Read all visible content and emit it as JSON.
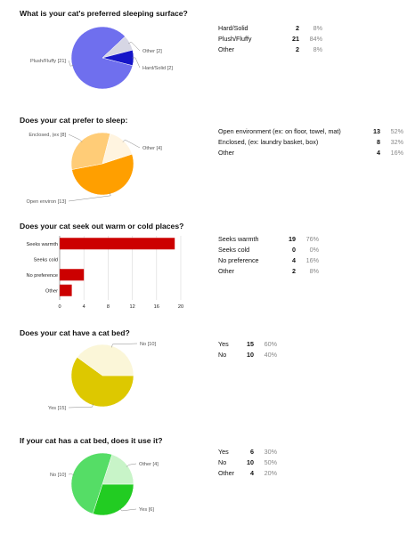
{
  "questions": [
    {
      "title": "What is your cat's preferred sleeping surface?",
      "summary": [
        {
          "label": "Hard/Solid",
          "count": "2",
          "percent": "8%"
        },
        {
          "label": "Plush/Fluffy",
          "count": "21",
          "percent": "84%"
        },
        {
          "label": "Other",
          "count": "2",
          "percent": "8%"
        }
      ]
    },
    {
      "title": "Does your cat prefer to sleep:",
      "summary": [
        {
          "label": "Open environment (ex: on floor, towel, mat)",
          "count": "13",
          "percent": "52%"
        },
        {
          "label": "Enclosed, (ex: laundry basket, box)",
          "count": "8",
          "percent": "32%"
        },
        {
          "label": "Other",
          "count": "4",
          "percent": "16%"
        }
      ]
    },
    {
      "title": "Does your cat seek out warm or cold places?",
      "summary": [
        {
          "label": "Seeks warmth",
          "count": "19",
          "percent": "76%"
        },
        {
          "label": "Seeks cold",
          "count": "0",
          "percent": "0%"
        },
        {
          "label": "No preference",
          "count": "4",
          "percent": "16%"
        },
        {
          "label": "Other",
          "count": "2",
          "percent": "8%"
        }
      ]
    },
    {
      "title": "Does your cat have a cat bed?",
      "summary": [
        {
          "label": "Yes",
          "count": "15",
          "percent": "60%"
        },
        {
          "label": "No",
          "count": "10",
          "percent": "40%"
        }
      ]
    },
    {
      "title": "If your cat has a cat bed, does it use it?",
      "summary": [
        {
          "label": "Yes",
          "count": "6",
          "percent": "30%"
        },
        {
          "label": "No",
          "count": "10",
          "percent": "50%"
        },
        {
          "label": "Other",
          "count": "4",
          "percent": "20%"
        }
      ]
    }
  ],
  "chart_data": [
    {
      "type": "pie",
      "slices": [
        {
          "label": "Plush/Fluffy [21]",
          "value": 21,
          "color": "#6f6fee"
        },
        {
          "label": "Other [2]",
          "value": 2,
          "color": "#d6d6e4"
        },
        {
          "label": "Hard/Solid [2]",
          "value": 2,
          "color": "#1515c8"
        }
      ]
    },
    {
      "type": "pie",
      "slices": [
        {
          "label": "Open environ [13]",
          "value": 13,
          "color": "#ff9f00"
        },
        {
          "label": "Enclosed, (ex [8]",
          "value": 8,
          "color": "#ffcc77"
        },
        {
          "label": "Other [4]",
          "value": 4,
          "color": "#fff4e0"
        }
      ]
    },
    {
      "type": "bar",
      "orientation": "horizontal",
      "categories": [
        "Seeks warmth",
        "Seeks cold",
        "No preference",
        "Other"
      ],
      "values": [
        19,
        0,
        4,
        2
      ],
      "xlim": [
        0,
        20
      ],
      "xticks": [
        "0",
        "4",
        "8",
        "12",
        "16",
        "20"
      ],
      "color": "#cc0000"
    },
    {
      "type": "pie",
      "slices": [
        {
          "label": "Yes [15]",
          "value": 15,
          "color": "#ddc800"
        },
        {
          "label": "No [10]",
          "value": 10,
          "color": "#fbf6d8"
        }
      ]
    },
    {
      "type": "pie",
      "slices": [
        {
          "label": "Yes [6]",
          "value": 6,
          "color": "#22cc22"
        },
        {
          "label": "No [10]",
          "value": 10,
          "color": "#55dd66"
        },
        {
          "label": "Other [4]",
          "value": 4,
          "color": "#c8f4c8"
        }
      ]
    }
  ]
}
